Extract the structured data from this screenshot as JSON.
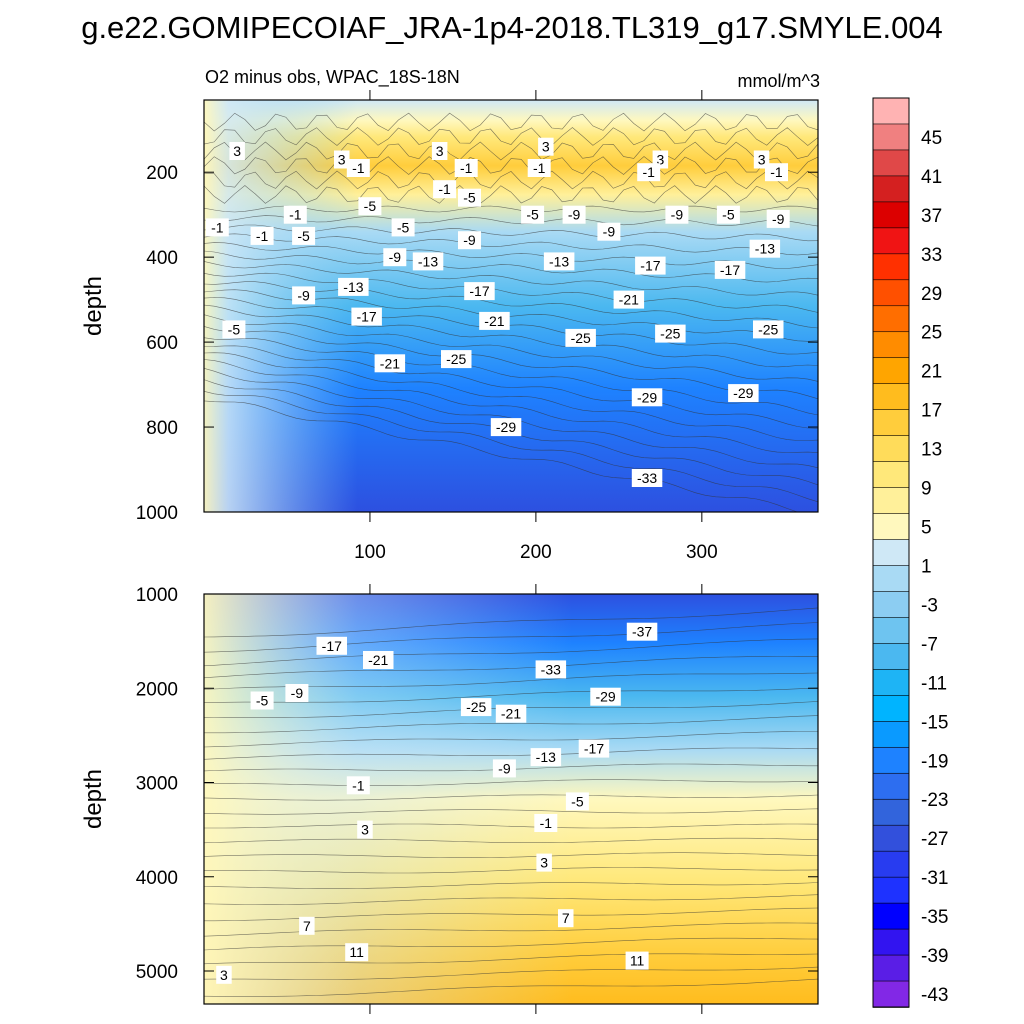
{
  "title": "g.e22.GOMIPECOIAF_JRA-1p4-2018.TL319_g17.SMYLE.004",
  "chart_data": {
    "type": "heatmap",
    "units": "mmol/m^3",
    "colorbar": {
      "labels": [
        "45",
        "41",
        "37",
        "33",
        "29",
        "25",
        "21",
        "17",
        "13",
        "9",
        "5",
        "1",
        "-3",
        "-7",
        "-11",
        "-15",
        "-19",
        "-23",
        "-27",
        "-31",
        "-35",
        "-39",
        "-43"
      ],
      "colors": [
        "#ffb3b3",
        "#f08080",
        "#e04848",
        "#d42020",
        "#dc0000",
        "#f01414",
        "#ff3000",
        "#ff5000",
        "#ff6e00",
        "#ff8c00",
        "#ffa500",
        "#ffbc1e",
        "#ffcd3c",
        "#ffdc5a",
        "#ffe87a",
        "#fff09a",
        "#fff8be",
        "#cfe8f6",
        "#a9daf4",
        "#8ccdf2",
        "#6ec4f0",
        "#4bb8f0",
        "#1eb4f5",
        "#00b4ff",
        "#0a9aff",
        "#1e82ff",
        "#2d6ef0",
        "#3264dc",
        "#3250dc",
        "#283cf0",
        "#1e32ff",
        "#0000ff",
        "#3214f0",
        "#5a1ee6",
        "#8228e6"
      ]
    },
    "panels": [
      {
        "subtitle_left": "O2 minus obs, WPAC_18S-18N",
        "subtitle_right": "mmol/m^3",
        "ylabel": "depth",
        "yticks": [
          "200",
          "400",
          "600",
          "800",
          "1000"
        ],
        "xticks": [
          "100",
          "200",
          "300"
        ],
        "xlim": [
          0,
          370
        ],
        "ylim": [
          1000,
          30
        ],
        "contour_labels": [
          {
            "t": "3",
            "x": 20,
            "y": 150
          },
          {
            "t": "3",
            "x": 83,
            "y": 170
          },
          {
            "t": "3",
            "x": 142,
            "y": 150
          },
          {
            "t": "3",
            "x": 206,
            "y": 140
          },
          {
            "t": "3",
            "x": 275,
            "y": 170
          },
          {
            "t": "3",
            "x": 336,
            "y": 170
          },
          {
            "t": "-1",
            "x": 158,
            "y": 190
          },
          {
            "t": "-1",
            "x": 93,
            "y": 190
          },
          {
            "t": "-1",
            "x": 202,
            "y": 190
          },
          {
            "t": "-1",
            "x": 268,
            "y": 200
          },
          {
            "t": "-1",
            "x": 345,
            "y": 200
          },
          {
            "t": "-1",
            "x": 145,
            "y": 240
          },
          {
            "t": "-1",
            "x": 55,
            "y": 300
          },
          {
            "t": "-1",
            "x": 8,
            "y": 330
          },
          {
            "t": "-1",
            "x": 35,
            "y": 350
          },
          {
            "t": "-5",
            "x": 160,
            "y": 260
          },
          {
            "t": "-5",
            "x": 100,
            "y": 280
          },
          {
            "t": "-5",
            "x": 120,
            "y": 330
          },
          {
            "t": "-5",
            "x": 60,
            "y": 350
          },
          {
            "t": "-5",
            "x": 198,
            "y": 300
          },
          {
            "t": "-5",
            "x": 316,
            "y": 300
          },
          {
            "t": "-5",
            "x": 18,
            "y": 570
          },
          {
            "t": "-9",
            "x": 223,
            "y": 300
          },
          {
            "t": "-9",
            "x": 244,
            "y": 340
          },
          {
            "t": "-9",
            "x": 285,
            "y": 300
          },
          {
            "t": "-9",
            "x": 346,
            "y": 310
          },
          {
            "t": "-9",
            "x": 160,
            "y": 360
          },
          {
            "t": "-9",
            "x": 115,
            "y": 400
          },
          {
            "t": "-9",
            "x": 60,
            "y": 490
          },
          {
            "t": "-13",
            "x": 135,
            "y": 410
          },
          {
            "t": "-13",
            "x": 90,
            "y": 470
          },
          {
            "t": "-13",
            "x": 214,
            "y": 410
          },
          {
            "t": "-13",
            "x": 338,
            "y": 380
          },
          {
            "t": "-17",
            "x": 269,
            "y": 420
          },
          {
            "t": "-17",
            "x": 317,
            "y": 430
          },
          {
            "t": "-17",
            "x": 166,
            "y": 480
          },
          {
            "t": "-17",
            "x": 98,
            "y": 540
          },
          {
            "t": "-21",
            "x": 256,
            "y": 500
          },
          {
            "t": "-21",
            "x": 175,
            "y": 550
          },
          {
            "t": "-21",
            "x": 112,
            "y": 650
          },
          {
            "t": "-25",
            "x": 227,
            "y": 590
          },
          {
            "t": "-25",
            "x": 281,
            "y": 580
          },
          {
            "t": "-25",
            "x": 340,
            "y": 570
          },
          {
            "t": "-25",
            "x": 152,
            "y": 640
          },
          {
            "t": "-29",
            "x": 267,
            "y": 730
          },
          {
            "t": "-29",
            "x": 325,
            "y": 720
          },
          {
            "t": "-29",
            "x": 182,
            "y": 800
          },
          {
            "t": "-33",
            "x": 267,
            "y": 920
          }
        ]
      },
      {
        "ylabel": "depth",
        "yticks": [
          "1000",
          "2000",
          "3000",
          "4000",
          "5000"
        ],
        "xlim": [
          0,
          370
        ],
        "ylim": [
          5350,
          1000
        ],
        "contour_labels": [
          {
            "t": "-37",
            "x": 264,
            "y": 1400
          },
          {
            "t": "-17",
            "x": 77,
            "y": 1550
          },
          {
            "t": "-21",
            "x": 105,
            "y": 1700
          },
          {
            "t": "-33",
            "x": 209,
            "y": 1800
          },
          {
            "t": "-29",
            "x": 242,
            "y": 2090
          },
          {
            "t": "-9",
            "x": 56,
            "y": 2050
          },
          {
            "t": "-5",
            "x": 35,
            "y": 2130
          },
          {
            "t": "-25",
            "x": 164,
            "y": 2200
          },
          {
            "t": "-21",
            "x": 185,
            "y": 2270
          },
          {
            "t": "-17",
            "x": 235,
            "y": 2640
          },
          {
            "t": "-13",
            "x": 206,
            "y": 2730
          },
          {
            "t": "-9",
            "x": 181,
            "y": 2850
          },
          {
            "t": "-1",
            "x": 93,
            "y": 3030
          },
          {
            "t": "-5",
            "x": 225,
            "y": 3200
          },
          {
            "t": "-1",
            "x": 206,
            "y": 3430
          },
          {
            "t": "3",
            "x": 97,
            "y": 3500
          },
          {
            "t": "3",
            "x": 205,
            "y": 3850
          },
          {
            "t": "7",
            "x": 62,
            "y": 4520
          },
          {
            "t": "7",
            "x": 218,
            "y": 4440
          },
          {
            "t": "11",
            "x": 92,
            "y": 4800
          },
          {
            "t": "11",
            "x": 261,
            "y": 4890
          },
          {
            "t": "3",
            "x": 12,
            "y": 5040
          }
        ]
      }
    ]
  }
}
